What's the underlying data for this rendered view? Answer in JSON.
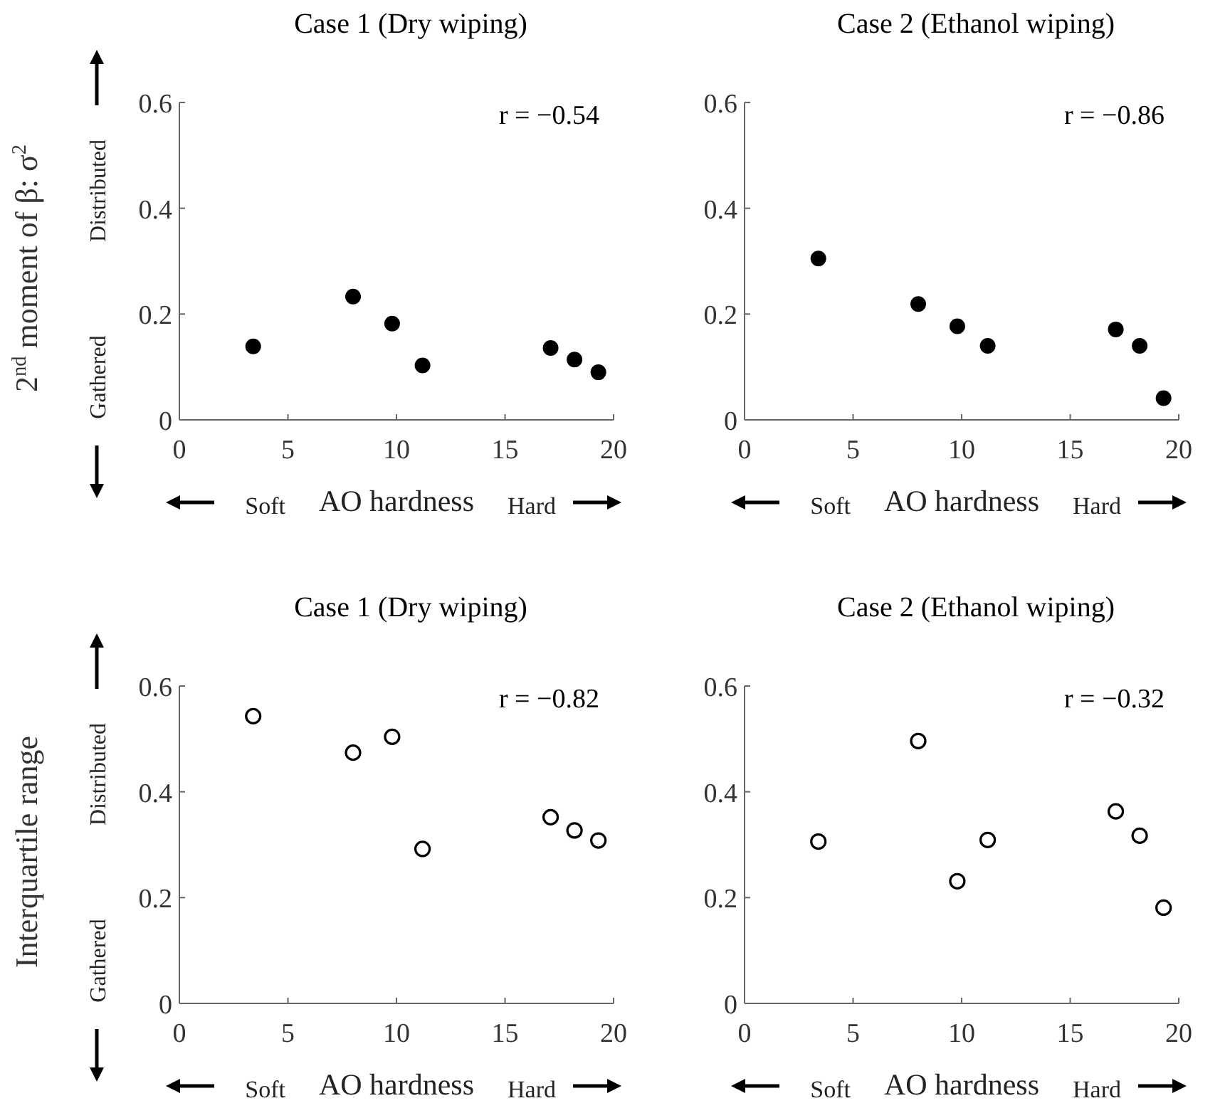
{
  "chart_data": [
    {
      "type": "scatter",
      "title": "Case 1 (Dry wiping)",
      "xlabel": "AO hardness",
      "ylabel": "2$^{nd}$ moment of β: σ$^{2}$",
      "annotations": [
        "r = −0.54",
        "Distributed",
        "Gathered",
        "Soft",
        "Hard"
      ],
      "xlim": [
        0,
        20
      ],
      "xticks": [
        0,
        5,
        10,
        15,
        20
      ],
      "ylim": [
        0,
        0.6
      ],
      "yticks": [
        0,
        0.2,
        0.4,
        0.6
      ],
      "marker": "circle",
      "series": [
        {
          "color": "#000000",
          "x": [
            3.4,
            8.0,
            9.8,
            11.2,
            17.1,
            18.2,
            19.3
          ],
          "values": [
            0.139,
            0.233,
            0.182,
            0.103,
            0.136,
            0.114,
            0.09
          ]
        }
      ]
    },
    {
      "type": "scatter",
      "title": "Case 2 (Ethanol wiping)",
      "xlabel": "AO hardness",
      "annotations": [
        "r = −0.86",
        "Soft",
        "Hard"
      ],
      "xlim": [
        0,
        20
      ],
      "xticks": [
        0,
        5,
        10,
        15,
        20
      ],
      "ylim": [
        0,
        0.6
      ],
      "yticks": [
        0,
        0.2,
        0.4,
        0.6
      ],
      "marker": "circle",
      "series": [
        {
          "color": "#000000",
          "x": [
            3.4,
            8.0,
            9.8,
            11.2,
            17.1,
            18.2,
            19.3
          ],
          "values": [
            0.305,
            0.219,
            0.177,
            0.14,
            0.171,
            0.14,
            0.041
          ]
        }
      ]
    },
    {
      "type": "scatter",
      "title": "Case 1 (Dry wiping)",
      "xlabel": "AO hardness",
      "ylabel": "Interquartile range",
      "annotations": [
        "r = −0.82",
        "Distributed",
        "Gathered",
        "Soft",
        "Hard"
      ],
      "xlim": [
        0,
        20
      ],
      "xticks": [
        0,
        5,
        10,
        15,
        20
      ],
      "ylim": [
        0,
        0.6
      ],
      "yticks": [
        0,
        0.2,
        0.4,
        0.6
      ],
      "marker": "circle-open",
      "series": [
        {
          "color": "#000000",
          "x": [
            3.4,
            8.0,
            9.8,
            11.2,
            17.1,
            18.2,
            19.3
          ],
          "values": [
            0.543,
            0.474,
            0.504,
            0.292,
            0.352,
            0.327,
            0.308
          ]
        }
      ]
    },
    {
      "type": "scatter",
      "title": "Case 2 (Ethanol wiping)",
      "xlabel": "AO hardness",
      "annotations": [
        "r = −0.32",
        "Soft",
        "Hard"
      ],
      "xlim": [
        0,
        20
      ],
      "xticks": [
        0,
        5,
        10,
        15,
        20
      ],
      "ylim": [
        0,
        0.6
      ],
      "yticks": [
        0,
        0.2,
        0.4,
        0.6
      ],
      "marker": "circle-open",
      "series": [
        {
          "color": "#000000",
          "x": [
            3.4,
            8.0,
            9.8,
            11.2,
            17.1,
            18.2,
            19.3
          ],
          "values": [
            0.306,
            0.496,
            0.231,
            0.309,
            0.363,
            0.317,
            0.181
          ]
        }
      ]
    }
  ]
}
